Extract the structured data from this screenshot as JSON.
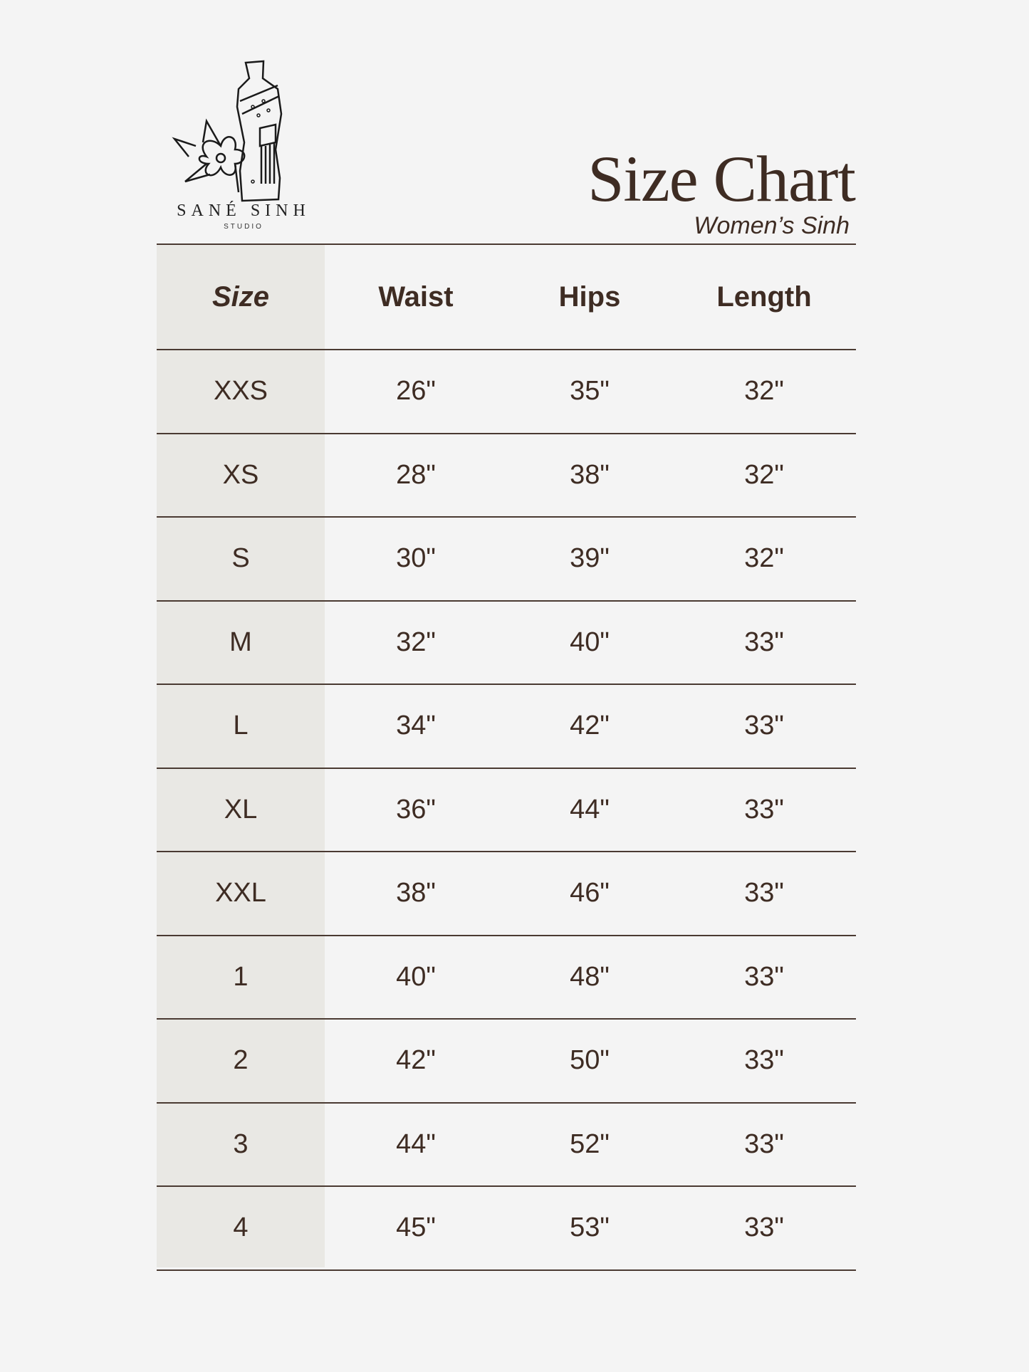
{
  "brand": {
    "name": "SANÉ SINH",
    "sub": "STUDIO"
  },
  "header": {
    "title": "Size Chart",
    "subtitle": "Women’s Sinh"
  },
  "colors": {
    "text": "#3e2c23",
    "background": "#f4f4f4",
    "size_column": "#e9e8e4"
  },
  "table": {
    "columns": [
      "Size",
      "Waist",
      "Hips",
      "Length"
    ],
    "rows": [
      [
        "XXS",
        "26\"",
        "35\"",
        "32\""
      ],
      [
        "XS",
        "28\"",
        "38\"",
        "32\""
      ],
      [
        "S",
        "30\"",
        "39\"",
        "32\""
      ],
      [
        "M",
        "32\"",
        "40\"",
        "33\""
      ],
      [
        "L",
        "34\"",
        "42\"",
        "33\""
      ],
      [
        "XL",
        "36\"",
        "44\"",
        "33\""
      ],
      [
        "XXL",
        "38\"",
        "46\"",
        "33\""
      ],
      [
        "1",
        "40\"",
        "48\"",
        "33\""
      ],
      [
        "2",
        "42\"",
        "50\"",
        "33\""
      ],
      [
        "3",
        "44\"",
        "52\"",
        "33\""
      ],
      [
        "4",
        "45\"",
        "53\"",
        "33\""
      ]
    ]
  }
}
